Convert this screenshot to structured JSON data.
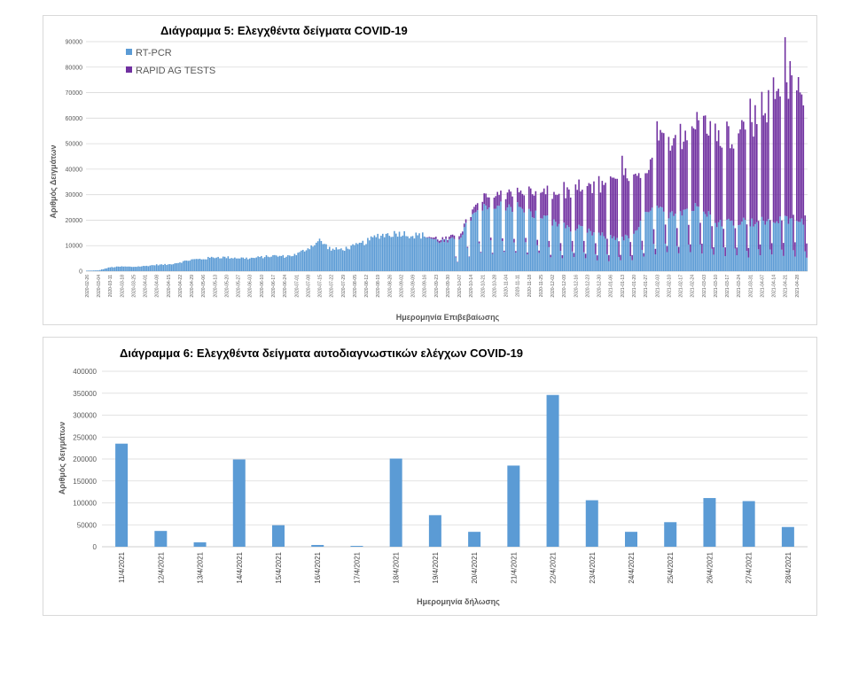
{
  "chart_data": [
    {
      "type": "bar",
      "stacked": true,
      "title": "Διάγραμμα 5: Ελεγχθέντα δείγματα COVID-19",
      "xlabel": "Ημερομηνία Επιβεβαίωσης",
      "ylabel": "Αριθμός Δειγμάτων",
      "ylim": [
        0,
        90000
      ],
      "yticks": [
        "0",
        "10000",
        "20000",
        "30000",
        "40000",
        "50000",
        "60000",
        "70000",
        "80000",
        "90000"
      ],
      "grid": true,
      "legend_position": "top-left",
      "x_tick_labels": [
        "2020-02-26",
        "2020-03-04",
        "2020-03-11",
        "2020-03-18",
        "2020-03-25",
        "2020-04-01",
        "2020-04-08",
        "2020-04-15",
        "2020-04-22",
        "2020-04-29",
        "2020-05-06",
        "2020-05-13",
        "2020-05-20",
        "2020-05-27",
        "2020-06-03",
        "2020-06-10",
        "2020-06-17",
        "2020-06-24",
        "2020-07-01",
        "2020-07-08",
        "2020-07-15",
        "2020-07-22",
        "2020-07-29",
        "2020-08-05",
        "2020-08-12",
        "2020-08-19",
        "2020-08-26",
        "2020-09-02",
        "2020-09-09",
        "2020-09-16",
        "2020-09-23",
        "2020-09-30",
        "2020-10-07",
        "2020-10-14",
        "2020-10-21",
        "2020-10-28",
        "2020-11-04",
        "2020-11-11",
        "2020-11-18",
        "2020-11-25",
        "2020-12-02",
        "2020-12-09",
        "2020-12-16",
        "2020-12-23",
        "2020-12-30",
        "2021-01-06",
        "2021-01-13",
        "2021-01-20",
        "2021-01-27",
        "2021-02-03",
        "2021-02-10",
        "2021-02-17",
        "2021-02-24",
        "2021-03-03",
        "2021-03-10",
        "2021-03-17",
        "2021-03-24",
        "2021-03-31",
        "2021-04-07",
        "2021-04-14",
        "2021-04-21",
        "2021-04-28"
      ],
      "series": [
        {
          "name": "RT-PCR",
          "color": "#5b9bd5",
          "weekly_values": [
            200,
            300,
            1500,
            1800,
            1700,
            2000,
            2500,
            2600,
            3500,
            4500,
            4800,
            5500,
            5400,
            5200,
            5000,
            5500,
            6000,
            5800,
            6500,
            9000,
            12000,
            8500,
            8600,
            9800,
            11500,
            14000,
            14500,
            15000,
            14000,
            14000,
            12000,
            11500,
            13000,
            21000,
            24000,
            25000,
            26000,
            25000,
            23000,
            22000,
            19000,
            17500,
            17000,
            15500,
            14000,
            13500,
            13000,
            13500,
            22000,
            23500,
            23000,
            24000,
            24500,
            25500,
            19000,
            19500,
            20000,
            19000,
            19500,
            20000,
            20000,
            19000
          ]
        },
        {
          "name": "RAPID AG TESTS",
          "color": "#7030a0",
          "weekly_values": [
            0,
            0,
            0,
            0,
            0,
            0,
            0,
            0,
            0,
            0,
            0,
            0,
            0,
            0,
            0,
            0,
            0,
            0,
            0,
            0,
            0,
            0,
            0,
            0,
            0,
            0,
            0,
            0,
            0,
            0,
            800,
            1000,
            1500,
            1500,
            4000,
            5000,
            5000,
            6000,
            8000,
            9000,
            11000,
            13000,
            15000,
            17000,
            18000,
            23000,
            25000,
            22000,
            14000,
            27000,
            28000,
            28000,
            31000,
            35000,
            33000,
            32000,
            36000,
            40000,
            44000,
            46000,
            56000,
            52000
          ]
        }
      ]
    },
    {
      "type": "bar",
      "title": "Διάγραμμα 6: Ελεγχθέντα δείγματα αυτοδιαγνωστικών ελέγχων COVID-19",
      "xlabel": "Ημερομηνία δήλωσης",
      "ylabel": "Αριθμός δειγμάτων",
      "ylim": [
        0,
        400000
      ],
      "yticks": [
        "0",
        "50000",
        "100000",
        "150000",
        "200000",
        "250000",
        "300000",
        "350000",
        "400000"
      ],
      "grid": true,
      "color": "#5b9bd5",
      "categories": [
        "11/4/2021",
        "12/4/2021",
        "13/4/2021",
        "14/4/2021",
        "15/4/2021",
        "16/4/2021",
        "17/4/2021",
        "18/4/2021",
        "19/4/2021",
        "20/4/2021",
        "21/4/2021",
        "22/4/2021",
        "23/4/2021",
        "24/4/2021",
        "25/4/2021",
        "26/4/2021",
        "27/4/2021",
        "28/4/2021"
      ],
      "values": [
        235000,
        36000,
        10000,
        199000,
        49000,
        4000,
        2000,
        201000,
        72000,
        34000,
        185000,
        346000,
        106000,
        34000,
        56000,
        111000,
        104000,
        45000
      ]
    }
  ]
}
